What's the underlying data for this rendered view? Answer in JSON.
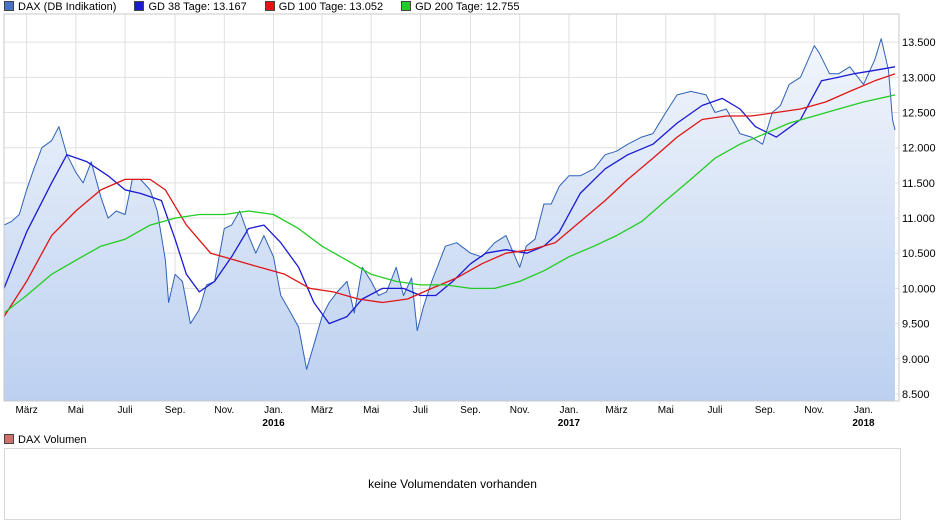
{
  "legend": [
    {
      "label": "DAX (DB Indikation)",
      "color": "#4a73c4"
    },
    {
      "label": "GD 38 Tage: 13.167",
      "color": "#1a1ad2"
    },
    {
      "label": "GD 100 Tage: 13.052",
      "color": "#e01515"
    },
    {
      "label": "GD 200 Tage: 12.755",
      "color": "#22cc22"
    }
  ],
  "volume": {
    "label": "DAX Volumen",
    "color": "#d0706a",
    "message": "keine Volumendaten vorhanden"
  },
  "chart_data": {
    "type": "line",
    "grid": true,
    "ylim": [
      8400,
      13900
    ],
    "yticks": [
      8500,
      9000,
      9500,
      10000,
      10500,
      11000,
      11500,
      12000,
      12500,
      13000,
      13500
    ],
    "ytick_labels": [
      "8.500",
      "9.000",
      "9.500",
      "10.000",
      "10.500",
      "11.000",
      "11.500",
      "12.000",
      "12.500",
      "13.000",
      "13.500"
    ],
    "xlim": [
      "2015-02-01",
      "2018-02-14"
    ],
    "xticks": [
      {
        "date": "2015-03-01",
        "label": "März",
        "year": ""
      },
      {
        "date": "2015-05-01",
        "label": "Mai",
        "year": ""
      },
      {
        "date": "2015-07-01",
        "label": "Juli",
        "year": ""
      },
      {
        "date": "2015-09-01",
        "label": "Sep.",
        "year": ""
      },
      {
        "date": "2015-11-01",
        "label": "Nov.",
        "year": ""
      },
      {
        "date": "2016-01-01",
        "label": "Jan.",
        "year": "2016"
      },
      {
        "date": "2016-03-01",
        "label": "März",
        "year": ""
      },
      {
        "date": "2016-05-01",
        "label": "Mai",
        "year": ""
      },
      {
        "date": "2016-07-01",
        "label": "Juli",
        "year": ""
      },
      {
        "date": "2016-09-01",
        "label": "Sep.",
        "year": ""
      },
      {
        "date": "2016-11-01",
        "label": "Nov.",
        "year": ""
      },
      {
        "date": "2017-01-01",
        "label": "Jan.",
        "year": "2017"
      },
      {
        "date": "2017-03-01",
        "label": "März",
        "year": ""
      },
      {
        "date": "2017-05-01",
        "label": "Mai",
        "year": ""
      },
      {
        "date": "2017-07-01",
        "label": "Juli",
        "year": ""
      },
      {
        "date": "2017-09-01",
        "label": "Sep.",
        "year": ""
      },
      {
        "date": "2017-11-01",
        "label": "Nov.",
        "year": ""
      },
      {
        "date": "2018-01-01",
        "label": "Jan.",
        "year": "2018"
      }
    ],
    "series": [
      {
        "name": "DAX (DB Indikation)",
        "color": "#2f62b8",
        "fill": true,
        "x": [
          "2015-02-01",
          "2015-02-10",
          "2015-02-20",
          "2015-03-01",
          "2015-03-10",
          "2015-03-20",
          "2015-04-01",
          "2015-04-10",
          "2015-04-20",
          "2015-05-01",
          "2015-05-10",
          "2015-05-20",
          "2015-06-01",
          "2015-06-10",
          "2015-06-20",
          "2015-07-01",
          "2015-07-10",
          "2015-07-20",
          "2015-08-01",
          "2015-08-10",
          "2015-08-20",
          "2015-08-24",
          "2015-09-01",
          "2015-09-10",
          "2015-09-20",
          "2015-10-01",
          "2015-10-10",
          "2015-10-20",
          "2015-11-01",
          "2015-11-10",
          "2015-11-20",
          "2015-12-01",
          "2015-12-10",
          "2015-12-20",
          "2016-01-01",
          "2016-01-10",
          "2016-01-20",
          "2016-02-01",
          "2016-02-11",
          "2016-02-20",
          "2016-03-01",
          "2016-03-10",
          "2016-03-20",
          "2016-04-01",
          "2016-04-10",
          "2016-04-20",
          "2016-05-01",
          "2016-05-10",
          "2016-05-20",
          "2016-06-01",
          "2016-06-10",
          "2016-06-20",
          "2016-06-27",
          "2016-07-05",
          "2016-07-15",
          "2016-08-01",
          "2016-08-15",
          "2016-09-01",
          "2016-09-15",
          "2016-10-01",
          "2016-10-15",
          "2016-11-01",
          "2016-11-09",
          "2016-11-20",
          "2016-12-01",
          "2016-12-10",
          "2016-12-20",
          "2017-01-01",
          "2017-01-15",
          "2017-02-01",
          "2017-02-15",
          "2017-03-01",
          "2017-03-15",
          "2017-04-01",
          "2017-04-15",
          "2017-05-01",
          "2017-05-15",
          "2017-06-01",
          "2017-06-20",
          "2017-07-01",
          "2017-07-15",
          "2017-08-01",
          "2017-08-15",
          "2017-08-29",
          "2017-09-10",
          "2017-09-20",
          "2017-10-01",
          "2017-10-15",
          "2017-11-01",
          "2017-11-07",
          "2017-11-20",
          "2017-12-01",
          "2017-12-15",
          "2018-01-01",
          "2018-01-15",
          "2018-01-23",
          "2018-02-01",
          "2018-02-06",
          "2018-02-09"
        ],
        "values": [
          10900,
          10950,
          11050,
          11400,
          11700,
          12000,
          12100,
          12300,
          11900,
          11650,
          11500,
          11800,
          11300,
          11000,
          11100,
          11050,
          11550,
          11550,
          11400,
          11100,
          10400,
          9800,
          10200,
          10100,
          9500,
          9700,
          10050,
          10100,
          10850,
          10900,
          11100,
          10750,
          10500,
          10750,
          10450,
          9900,
          9700,
          9450,
          8850,
          9200,
          9600,
          9800,
          9950,
          10100,
          9650,
          10300,
          10100,
          9900,
          9950,
          10300,
          9900,
          10150,
          9400,
          9750,
          10100,
          10600,
          10650,
          10500,
          10450,
          10650,
          10750,
          10300,
          10600,
          10700,
          11200,
          11200,
          11450,
          11600,
          11600,
          11700,
          11900,
          11950,
          12050,
          12150,
          12200,
          12500,
          12750,
          12800,
          12750,
          12500,
          12550,
          12200,
          12150,
          12050,
          12500,
          12600,
          12900,
          13000,
          13450,
          13350,
          13050,
          13050,
          13150,
          12900,
          13250,
          13550,
          13100,
          12400,
          12250
        ]
      },
      {
        "name": "GD 38 Tage",
        "color": "#1a1ad2",
        "fill": false,
        "x": [
          "2015-02-01",
          "2015-03-01",
          "2015-04-01",
          "2015-04-20",
          "2015-05-15",
          "2015-06-10",
          "2015-07-01",
          "2015-07-20",
          "2015-08-15",
          "2015-09-01",
          "2015-09-15",
          "2015-10-01",
          "2015-10-20",
          "2015-11-10",
          "2015-12-01",
          "2015-12-20",
          "2016-01-10",
          "2016-02-01",
          "2016-02-20",
          "2016-03-10",
          "2016-04-01",
          "2016-04-20",
          "2016-05-15",
          "2016-06-10",
          "2016-07-01",
          "2016-07-20",
          "2016-08-10",
          "2016-09-01",
          "2016-09-20",
          "2016-10-15",
          "2016-11-10",
          "2016-12-01",
          "2016-12-20",
          "2017-01-15",
          "2017-02-15",
          "2017-03-15",
          "2017-04-15",
          "2017-05-15",
          "2017-06-15",
          "2017-07-10",
          "2017-08-01",
          "2017-08-20",
          "2017-09-15",
          "2017-10-15",
          "2017-11-10",
          "2017-12-01",
          "2017-12-20",
          "2018-01-15",
          "2018-02-09"
        ],
        "values": [
          10000,
          10800,
          11500,
          11900,
          11800,
          11600,
          11400,
          11350,
          11250,
          10700,
          10200,
          9950,
          10100,
          10450,
          10850,
          10900,
          10650,
          10300,
          9800,
          9500,
          9600,
          9850,
          10000,
          10000,
          9900,
          9900,
          10100,
          10350,
          10500,
          10550,
          10500,
          10600,
          10800,
          11350,
          11700,
          11900,
          12050,
          12350,
          12600,
          12700,
          12550,
          12300,
          12150,
          12400,
          12950,
          13000,
          13050,
          13100,
          13150
        ]
      },
      {
        "name": "GD 100 Tage",
        "color": "#e01515",
        "fill": false,
        "x": [
          "2015-02-01",
          "2015-03-01",
          "2015-04-01",
          "2015-05-01",
          "2015-06-01",
          "2015-07-01",
          "2015-08-01",
          "2015-08-20",
          "2015-09-15",
          "2015-10-15",
          "2015-11-15",
          "2015-12-15",
          "2016-01-15",
          "2016-02-15",
          "2016-03-15",
          "2016-04-15",
          "2016-05-15",
          "2016-06-15",
          "2016-07-15",
          "2016-08-15",
          "2016-09-15",
          "2016-10-15",
          "2016-11-15",
          "2016-12-15",
          "2017-01-15",
          "2017-02-15",
          "2017-03-15",
          "2017-04-15",
          "2017-05-15",
          "2017-06-15",
          "2017-07-15",
          "2017-08-15",
          "2017-09-15",
          "2017-10-15",
          "2017-11-15",
          "2017-12-15",
          "2018-01-15",
          "2018-02-09"
        ],
        "values": [
          9600,
          10100,
          10750,
          11100,
          11400,
          11550,
          11550,
          11400,
          10900,
          10500,
          10400,
          10300,
          10200,
          10000,
          9950,
          9850,
          9800,
          9850,
          10000,
          10150,
          10350,
          10500,
          10550,
          10650,
          10950,
          11250,
          11550,
          11850,
          12150,
          12400,
          12450,
          12450,
          12500,
          12550,
          12650,
          12800,
          12950,
          13050
        ]
      },
      {
        "name": "GD 200 Tage",
        "color": "#22cc22",
        "fill": false,
        "x": [
          "2015-02-01",
          "2015-03-01",
          "2015-04-01",
          "2015-05-01",
          "2015-06-01",
          "2015-07-01",
          "2015-08-01",
          "2015-09-01",
          "2015-10-01",
          "2015-11-01",
          "2015-12-01",
          "2016-01-01",
          "2016-02-01",
          "2016-03-01",
          "2016-04-01",
          "2016-05-01",
          "2016-06-01",
          "2016-07-01",
          "2016-08-01",
          "2016-09-01",
          "2016-10-01",
          "2016-11-01",
          "2016-12-01",
          "2017-01-01",
          "2017-02-01",
          "2017-03-01",
          "2017-04-01",
          "2017-05-01",
          "2017-06-01",
          "2017-07-01",
          "2017-08-01",
          "2017-09-01",
          "2017-10-01",
          "2017-11-01",
          "2017-12-01",
          "2018-01-01",
          "2018-02-09"
        ],
        "values": [
          9650,
          9900,
          10200,
          10400,
          10600,
          10700,
          10900,
          11000,
          11050,
          11050,
          11100,
          11050,
          10850,
          10600,
          10400,
          10200,
          10100,
          10050,
          10050,
          10000,
          10000,
          10100,
          10250,
          10450,
          10600,
          10750,
          10950,
          11250,
          11550,
          11850,
          12050,
          12200,
          12350,
          12450,
          12550,
          12650,
          12750
        ]
      }
    ]
  }
}
